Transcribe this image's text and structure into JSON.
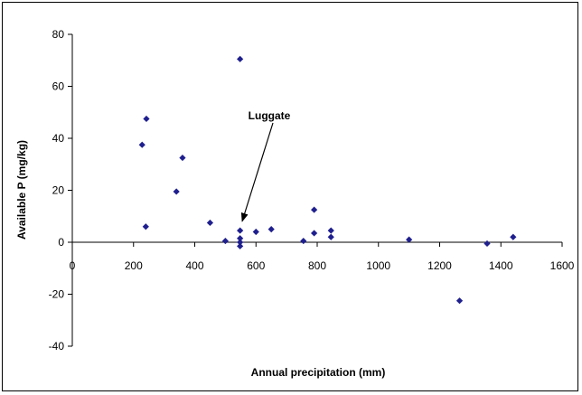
{
  "chart_data": {
    "type": "scatter",
    "xlabel": "Annual precipitation (mm)",
    "ylabel": "Available P (mg/kg)",
    "xlim": [
      0,
      1600
    ],
    "ylim": [
      -40,
      80
    ],
    "x_ticks": [
      0,
      200,
      400,
      600,
      800,
      1000,
      1200,
      1400,
      1600
    ],
    "y_ticks": [
      -40,
      -20,
      0,
      20,
      40,
      60,
      80
    ],
    "grid": false,
    "legend": "none",
    "marker": "diamond",
    "marker_color": "#1f1f8f",
    "points": [
      {
        "x": 228,
        "y": 37.5
      },
      {
        "x": 242,
        "y": 47.5
      },
      {
        "x": 240,
        "y": 6
      },
      {
        "x": 340,
        "y": 19.5
      },
      {
        "x": 360,
        "y": 32.5
      },
      {
        "x": 450,
        "y": 7.5
      },
      {
        "x": 500,
        "y": 0.5
      },
      {
        "x": 548,
        "y": 70.5
      },
      {
        "x": 548,
        "y": 4.5
      },
      {
        "x": 548,
        "y": 1.5
      },
      {
        "x": 548,
        "y": 0
      },
      {
        "x": 548,
        "y": -1.5
      },
      {
        "x": 600,
        "y": 4
      },
      {
        "x": 650,
        "y": 5
      },
      {
        "x": 755,
        "y": 0.5
      },
      {
        "x": 790,
        "y": 12.5
      },
      {
        "x": 790,
        "y": 3.5
      },
      {
        "x": 845,
        "y": 4.5
      },
      {
        "x": 845,
        "y": 2
      },
      {
        "x": 1100,
        "y": 1
      },
      {
        "x": 1265,
        "y": -22.5
      },
      {
        "x": 1355,
        "y": -0.5
      },
      {
        "x": 1440,
        "y": 2
      }
    ],
    "annotations": [
      {
        "text": "Luggate",
        "target_x": 555,
        "target_y": 6
      }
    ]
  }
}
